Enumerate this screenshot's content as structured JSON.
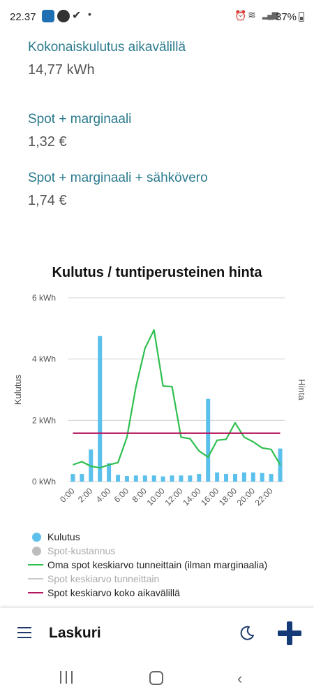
{
  "status_bar": {
    "time": "22.37",
    "battery": "37%",
    "icons": [
      "app-icon",
      "app-icon",
      "check-icon",
      "dot-icon",
      "alarm-icon",
      "wifi-icon",
      "signal-icon",
      "battery-icon"
    ]
  },
  "metrics": [
    {
      "label": "Kokonaiskulutus aikavälillä",
      "value": "14,77 kWh"
    },
    {
      "label": "Spot + marginaali",
      "value": "1,32 €"
    },
    {
      "label": "Spot + marginaali + sähkövero",
      "value": "1,74 €"
    }
  ],
  "chart_data": {
    "type": "bar",
    "title": "Kulutus / tuntiperusteinen hinta",
    "ylabel": "Kulutus",
    "y2label": "Hinta",
    "yticks": [
      "0 kWh",
      "2 kWh",
      "4 kWh",
      "6 kWh"
    ],
    "ylim": [
      0,
      6
    ],
    "xticks": [
      "0:00",
      "2:00",
      "4:00",
      "6:00",
      "8:00",
      "10:00",
      "12:00",
      "14:00",
      "16:00",
      "18:00",
      "20:00",
      "22:00"
    ],
    "categories": [
      "0:00",
      "1:00",
      "2:00",
      "3:00",
      "4:00",
      "5:00",
      "6:00",
      "7:00",
      "8:00",
      "9:00",
      "10:00",
      "11:00",
      "12:00",
      "13:00",
      "14:00",
      "15:00",
      "16:00",
      "17:00",
      "18:00",
      "19:00",
      "20:00",
      "21:00",
      "22:00",
      "23:00"
    ],
    "series": [
      {
        "name": "Kulutus",
        "type": "bar",
        "values": [
          0.25,
          0.25,
          1.05,
          4.75,
          0.6,
          0.22,
          0.18,
          0.2,
          0.2,
          0.2,
          0.17,
          0.2,
          0.2,
          0.2,
          0.25,
          2.7,
          0.3,
          0.25,
          0.25,
          0.3,
          0.3,
          0.28,
          0.25,
          1.08
        ]
      },
      {
        "name": "Oma spot keskiarvo tunneittain (ilman marginaalia)",
        "type": "line",
        "values": [
          0.55,
          0.65,
          0.5,
          0.45,
          0.55,
          0.62,
          1.45,
          3.1,
          4.35,
          4.95,
          3.12,
          3.1,
          1.45,
          1.4,
          1.0,
          0.8,
          1.35,
          1.38,
          1.92,
          1.45,
          1.3,
          1.1,
          1.05,
          0.55
        ]
      },
      {
        "name": "Spot keskiarvo koko aikavälillä",
        "type": "line",
        "values": [
          1.58,
          1.58,
          1.58,
          1.58,
          1.58,
          1.58,
          1.58,
          1.58,
          1.58,
          1.58,
          1.58,
          1.58,
          1.58,
          1.58,
          1.58,
          1.58,
          1.58,
          1.58,
          1.58,
          1.58,
          1.58,
          1.58,
          1.58,
          1.58
        ]
      }
    ],
    "grid": true
  },
  "legend": [
    {
      "label": "Kulutus",
      "kind": "dot",
      "color": "#5bc0eb",
      "muted": false
    },
    {
      "label": "Spot-kustannus",
      "kind": "dot",
      "color": "#bdbdbd",
      "muted": true
    },
    {
      "label": "Oma spot keskiarvo tunneittain (ilman marginaalia)",
      "kind": "line",
      "color": "#2fbf4f",
      "muted": false
    },
    {
      "label": "Spot keskiarvo tunneittain",
      "kind": "line",
      "color": "#c8c8c8",
      "muted": true
    },
    {
      "label": "Spot keskiarvo koko aikavälillä",
      "kind": "line",
      "color": "#b5165e",
      "muted": false
    }
  ],
  "colors": {
    "bar": "#5bc0eb",
    "line_own": "#2fbf4f",
    "line_avg": "#b5165e",
    "accent": "#143b78"
  },
  "app_bar": {
    "title": "Laskuri",
    "icons": [
      "menu-icon",
      "moon-icon",
      "plus-icon"
    ]
  }
}
